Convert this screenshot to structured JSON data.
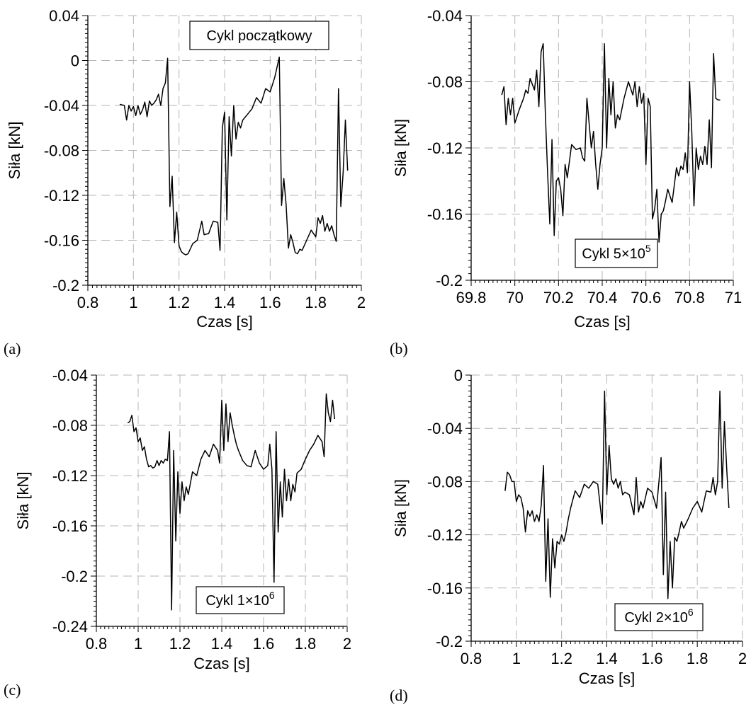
{
  "chart_data": [
    {
      "type": "line",
      "panel_label": "(a)",
      "xlabel": "Czas [s]",
      "ylabel": "Siła [kN]",
      "annotation": {
        "base": "Cykl początkowy",
        "sup": ""
      },
      "xlim": [
        0.8,
        2.0
      ],
      "ylim": [
        -0.2,
        0.04
      ],
      "xticks": [
        0.8,
        1.0,
        1.2,
        1.4,
        1.6,
        1.8,
        2.0
      ],
      "xticklabels": [
        "0.8",
        "1",
        "1.2",
        "1.4",
        "1.6",
        "1.8",
        "2"
      ],
      "yticks": [
        -0.2,
        -0.16,
        -0.12,
        -0.08,
        -0.04,
        0,
        0.04
      ],
      "yticklabels": [
        "-0.2",
        "-0.16",
        "-0.12",
        "-0.08",
        "-0.04",
        "0",
        "0.04"
      ],
      "x": [
        0.94,
        0.96,
        0.97,
        0.98,
        0.99,
        1.0,
        1.01,
        1.02,
        1.03,
        1.04,
        1.05,
        1.06,
        1.07,
        1.08,
        1.09,
        1.1,
        1.11,
        1.12,
        1.13,
        1.14,
        1.15,
        1.16,
        1.17,
        1.18,
        1.19,
        1.2,
        1.21,
        1.22,
        1.23,
        1.24,
        1.26,
        1.28,
        1.3,
        1.31,
        1.33,
        1.35,
        1.37,
        1.38,
        1.39,
        1.4,
        1.41,
        1.42,
        1.43,
        1.44,
        1.45,
        1.46,
        1.47,
        1.48,
        1.5,
        1.52,
        1.54,
        1.56,
        1.58,
        1.6,
        1.62,
        1.64,
        1.65,
        1.66,
        1.67,
        1.68,
        1.69,
        1.7,
        1.71,
        1.72,
        1.73,
        1.74,
        1.76,
        1.78,
        1.8,
        1.81,
        1.82,
        1.83,
        1.84,
        1.85,
        1.86,
        1.87,
        1.88,
        1.89,
        1.9,
        1.91,
        1.92,
        1.93,
        1.94
      ],
      "values": [
        -0.039,
        -0.04,
        -0.053,
        -0.04,
        -0.045,
        -0.041,
        -0.049,
        -0.04,
        -0.048,
        -0.044,
        -0.037,
        -0.05,
        -0.036,
        -0.04,
        -0.038,
        -0.035,
        -0.03,
        -0.04,
        -0.025,
        -0.02,
        0.002,
        -0.13,
        -0.103,
        -0.162,
        -0.135,
        -0.165,
        -0.17,
        -0.172,
        -0.173,
        -0.172,
        -0.163,
        -0.16,
        -0.143,
        -0.155,
        -0.154,
        -0.143,
        -0.144,
        -0.169,
        -0.06,
        -0.046,
        -0.142,
        -0.05,
        -0.085,
        -0.04,
        -0.07,
        -0.055,
        -0.06,
        -0.053,
        -0.048,
        -0.043,
        -0.033,
        -0.038,
        -0.025,
        -0.028,
        -0.015,
        0.003,
        -0.129,
        -0.105,
        -0.128,
        -0.167,
        -0.155,
        -0.162,
        -0.171,
        -0.172,
        -0.168,
        -0.169,
        -0.16,
        -0.151,
        -0.157,
        -0.14,
        -0.145,
        -0.138,
        -0.152,
        -0.145,
        -0.152,
        -0.147,
        -0.155,
        -0.161,
        -0.025,
        -0.13,
        -0.1,
        -0.053,
        -0.098
      ]
    },
    {
      "type": "line",
      "panel_label": "(b)",
      "xlabel": "Czas [s]",
      "ylabel": "Siła [kN]",
      "annotation": {
        "base": "Cykl 5×10",
        "sup": "5"
      },
      "xlim": [
        69.8,
        71.0
      ],
      "ylim": [
        -0.2,
        -0.04
      ],
      "xticks": [
        69.8,
        70.0,
        70.2,
        70.4,
        70.6,
        70.8,
        71.0
      ],
      "xticklabels": [
        "69.8",
        "70",
        "70.2",
        "70.4",
        "70.6",
        "70.8",
        "71"
      ],
      "yticks": [
        -0.2,
        -0.16,
        -0.12,
        -0.08,
        -0.04
      ],
      "yticklabels": [
        "-0.2",
        "-0.16",
        "-0.12",
        "-0.08",
        "-0.04"
      ],
      "x": [
        69.94,
        69.95,
        69.96,
        69.97,
        69.98,
        69.99,
        70.0,
        70.02,
        70.04,
        70.05,
        70.06,
        70.07,
        70.09,
        70.1,
        70.11,
        70.12,
        70.13,
        70.14,
        70.15,
        70.16,
        70.17,
        70.18,
        70.19,
        70.2,
        70.21,
        70.22,
        70.23,
        70.24,
        70.26,
        70.28,
        70.3,
        70.31,
        70.32,
        70.33,
        70.34,
        70.35,
        70.36,
        70.37,
        70.38,
        70.39,
        70.4,
        70.41,
        70.42,
        70.43,
        70.44,
        70.45,
        70.46,
        70.47,
        70.48,
        70.5,
        70.52,
        70.54,
        70.55,
        70.56,
        70.57,
        70.58,
        70.59,
        70.6,
        70.61,
        70.62,
        70.63,
        70.64,
        70.65,
        70.66,
        70.67,
        70.68,
        70.69,
        70.7,
        70.72,
        70.74,
        70.75,
        70.76,
        70.77,
        70.78,
        70.79,
        70.8,
        70.81,
        70.82,
        70.83,
        70.84,
        70.85,
        70.86,
        70.87,
        70.88,
        70.89,
        70.9,
        70.91,
        70.92,
        70.93,
        70.94
      ],
      "values": [
        -0.088,
        -0.083,
        -0.106,
        -0.09,
        -0.1,
        -0.09,
        -0.105,
        -0.097,
        -0.09,
        -0.085,
        -0.087,
        -0.078,
        -0.085,
        -0.073,
        -0.095,
        -0.062,
        -0.057,
        -0.1,
        -0.135,
        -0.166,
        -0.115,
        -0.173,
        -0.14,
        -0.138,
        -0.145,
        -0.161,
        -0.13,
        -0.138,
        -0.118,
        -0.121,
        -0.12,
        -0.126,
        -0.128,
        -0.09,
        -0.105,
        -0.12,
        -0.11,
        -0.13,
        -0.145,
        -0.13,
        -0.12,
        -0.057,
        -0.12,
        -0.078,
        -0.1,
        -0.08,
        -0.108,
        -0.1,
        -0.103,
        -0.09,
        -0.08,
        -0.088,
        -0.08,
        -0.095,
        -0.083,
        -0.093,
        -0.087,
        -0.13,
        -0.09,
        -0.095,
        -0.163,
        -0.157,
        -0.145,
        -0.177,
        -0.16,
        -0.158,
        -0.152,
        -0.145,
        -0.153,
        -0.132,
        -0.137,
        -0.131,
        -0.133,
        -0.123,
        -0.135,
        -0.08,
        -0.11,
        -0.155,
        -0.12,
        -0.133,
        -0.125,
        -0.13,
        -0.119,
        -0.13,
        -0.103,
        -0.132,
        -0.063,
        -0.09,
        -0.091,
        -0.091
      ]
    },
    {
      "type": "line",
      "panel_label": "(c)",
      "xlabel": "Czas [s]",
      "ylabel": "Siła [kN]",
      "annotation": {
        "base": "Cykl 1×10",
        "sup": "6"
      },
      "xlim": [
        0.8,
        2.0
      ],
      "ylim": [
        -0.24,
        -0.04
      ],
      "xticks": [
        0.8,
        1.0,
        1.2,
        1.4,
        1.6,
        1.8,
        2.0
      ],
      "xticklabels": [
        "0.8",
        "1",
        "1.2",
        "1.4",
        "1.6",
        "1.8",
        "2"
      ],
      "yticks": [
        -0.24,
        -0.2,
        -0.16,
        -0.12,
        -0.08,
        -0.04
      ],
      "yticklabels": [
        "-0.24",
        "-0.2",
        "-0.16",
        "-0.12",
        "-0.08",
        "-0.04"
      ],
      "x": [
        0.95,
        0.96,
        0.97,
        0.98,
        0.99,
        1.0,
        1.01,
        1.02,
        1.03,
        1.04,
        1.05,
        1.06,
        1.07,
        1.08,
        1.09,
        1.1,
        1.11,
        1.12,
        1.13,
        1.14,
        1.15,
        1.16,
        1.17,
        1.18,
        1.19,
        1.2,
        1.21,
        1.22,
        1.23,
        1.24,
        1.26,
        1.28,
        1.3,
        1.32,
        1.34,
        1.36,
        1.38,
        1.39,
        1.4,
        1.41,
        1.42,
        1.43,
        1.44,
        1.45,
        1.46,
        1.47,
        1.48,
        1.5,
        1.52,
        1.54,
        1.56,
        1.58,
        1.6,
        1.62,
        1.63,
        1.64,
        1.65,
        1.66,
        1.67,
        1.68,
        1.69,
        1.7,
        1.71,
        1.72,
        1.73,
        1.74,
        1.75,
        1.76,
        1.78,
        1.8,
        1.82,
        1.84,
        1.86,
        1.88,
        1.89,
        1.9,
        1.91,
        1.92,
        1.93,
        1.94
      ],
      "values": [
        -0.078,
        -0.077,
        -0.072,
        -0.085,
        -0.082,
        -0.093,
        -0.09,
        -0.1,
        -0.097,
        -0.107,
        -0.113,
        -0.112,
        -0.114,
        -0.113,
        -0.108,
        -0.112,
        -0.108,
        -0.11,
        -0.107,
        -0.108,
        -0.085,
        -0.227,
        -0.1,
        -0.172,
        -0.117,
        -0.15,
        -0.125,
        -0.14,
        -0.129,
        -0.135,
        -0.117,
        -0.12,
        -0.107,
        -0.1,
        -0.105,
        -0.095,
        -0.1,
        -0.11,
        -0.06,
        -0.1,
        -0.063,
        -0.093,
        -0.07,
        -0.08,
        -0.088,
        -0.095,
        -0.1,
        -0.108,
        -0.112,
        -0.113,
        -0.1,
        -0.11,
        -0.115,
        -0.112,
        -0.095,
        -0.115,
        -0.205,
        -0.085,
        -0.165,
        -0.125,
        -0.153,
        -0.115,
        -0.14,
        -0.123,
        -0.14,
        -0.127,
        -0.133,
        -0.118,
        -0.115,
        -0.107,
        -0.1,
        -0.095,
        -0.088,
        -0.093,
        -0.105,
        -0.055,
        -0.07,
        -0.077,
        -0.06,
        -0.075
      ]
    },
    {
      "type": "line",
      "panel_label": "(d)",
      "xlabel": "Czas [s]",
      "ylabel": "Siła [kN]",
      "annotation": {
        "base": "Cykl 2×10",
        "sup": "6"
      },
      "xlim": [
        0.8,
        2.0
      ],
      "ylim": [
        -0.2,
        0.0
      ],
      "xticks": [
        0.8,
        1.0,
        1.2,
        1.4,
        1.6,
        1.8,
        2.0
      ],
      "xticklabels": [
        "0.8",
        "1",
        "1.2",
        "1.4",
        "1.6",
        "1.8",
        "2"
      ],
      "yticks": [
        -0.2,
        -0.16,
        -0.12,
        -0.08,
        -0.04,
        0
      ],
      "yticklabels": [
        "-0.2",
        "-0.16",
        "-0.12",
        "-0.08",
        "-0.04",
        "0"
      ],
      "x": [
        0.95,
        0.96,
        0.97,
        0.98,
        0.99,
        1.0,
        1.01,
        1.02,
        1.03,
        1.04,
        1.05,
        1.06,
        1.07,
        1.08,
        1.09,
        1.1,
        1.11,
        1.12,
        1.13,
        1.14,
        1.15,
        1.16,
        1.17,
        1.18,
        1.19,
        1.2,
        1.21,
        1.22,
        1.23,
        1.24,
        1.26,
        1.28,
        1.3,
        1.32,
        1.34,
        1.36,
        1.38,
        1.39,
        1.4,
        1.41,
        1.42,
        1.43,
        1.44,
        1.45,
        1.46,
        1.47,
        1.48,
        1.5,
        1.52,
        1.53,
        1.54,
        1.55,
        1.56,
        1.58,
        1.6,
        1.62,
        1.64,
        1.65,
        1.66,
        1.67,
        1.68,
        1.69,
        1.7,
        1.71,
        1.72,
        1.73,
        1.74,
        1.76,
        1.78,
        1.8,
        1.82,
        1.84,
        1.86,
        1.87,
        1.88,
        1.89,
        1.9,
        1.91,
        1.92,
        1.93,
        1.94
      ],
      "values": [
        -0.087,
        -0.073,
        -0.075,
        -0.08,
        -0.08,
        -0.095,
        -0.09,
        -0.092,
        -0.1,
        -0.118,
        -0.102,
        -0.106,
        -0.102,
        -0.11,
        -0.105,
        -0.11,
        -0.098,
        -0.068,
        -0.155,
        -0.108,
        -0.167,
        -0.123,
        -0.145,
        -0.125,
        -0.127,
        -0.12,
        -0.125,
        -0.118,
        -0.108,
        -0.1,
        -0.087,
        -0.092,
        -0.082,
        -0.085,
        -0.08,
        -0.082,
        -0.112,
        -0.012,
        -0.09,
        -0.053,
        -0.078,
        -0.082,
        -0.078,
        -0.085,
        -0.08,
        -0.09,
        -0.088,
        -0.09,
        -0.105,
        -0.077,
        -0.103,
        -0.095,
        -0.1,
        -0.085,
        -0.088,
        -0.1,
        -0.062,
        -0.15,
        -0.088,
        -0.168,
        -0.125,
        -0.16,
        -0.122,
        -0.125,
        -0.118,
        -0.11,
        -0.115,
        -0.108,
        -0.1,
        -0.095,
        -0.103,
        -0.087,
        -0.088,
        -0.077,
        -0.09,
        -0.08,
        -0.012,
        -0.085,
        -0.035,
        -0.07,
        -0.1
      ]
    }
  ]
}
